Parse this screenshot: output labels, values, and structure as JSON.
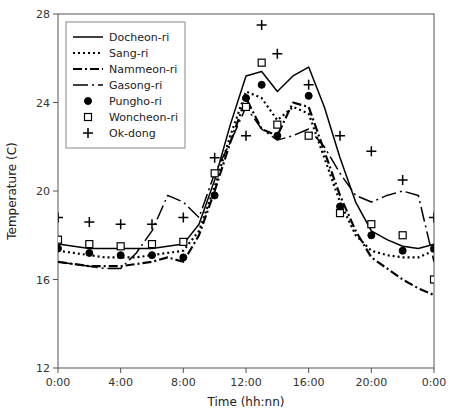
{
  "chart_data": {
    "type": "line",
    "xlabel": "Time (hh:nn)",
    "ylabel": "Temperature (C)",
    "xlim": [
      0,
      24
    ],
    "xticks": [
      {
        "value": 0,
        "label": "0:00"
      },
      {
        "value": 4,
        "label": "4:00"
      },
      {
        "value": 8,
        "label": "8:00"
      },
      {
        "value": 12,
        "label": "12:00"
      },
      {
        "value": 16,
        "label": "16:00"
      },
      {
        "value": 20,
        "label": "20:00"
      },
      {
        "value": 24,
        "label": "0:00"
      }
    ],
    "ylim": [
      12,
      28
    ],
    "yticks": [
      12,
      16,
      20,
      24,
      28
    ],
    "grid": false,
    "legend": "upper left",
    "series": [
      {
        "name": "Docheon-ri",
        "type": "line",
        "line_style": "solid",
        "color": "#000000",
        "x": [
          0,
          1,
          2,
          3,
          4,
          5,
          6,
          7,
          8,
          9,
          10,
          11,
          12,
          13,
          14,
          15,
          16,
          17,
          18,
          19,
          20,
          21,
          22,
          23,
          24
        ],
        "values": [
          17.6,
          17.5,
          17.4,
          17.4,
          17.4,
          17.4,
          17.4,
          17.5,
          17.6,
          18.5,
          20.5,
          23.0,
          25.2,
          25.4,
          24.5,
          25.2,
          25.6,
          23.8,
          21.5,
          19.5,
          18.2,
          17.8,
          17.5,
          17.4,
          17.6
        ]
      },
      {
        "name": "Sang-ri",
        "type": "line",
        "line_style": "dotted",
        "color": "#000000",
        "x": [
          0,
          1,
          2,
          3,
          4,
          5,
          6,
          7,
          8,
          9,
          10,
          11,
          12,
          13,
          14,
          15,
          16,
          17,
          18,
          19,
          20,
          21,
          22,
          23,
          24
        ],
        "values": [
          17.3,
          17.2,
          17.1,
          17.0,
          17.0,
          17.0,
          17.1,
          17.2,
          17.3,
          18.2,
          20.2,
          22.5,
          24.5,
          24.2,
          23.2,
          23.8,
          23.5,
          21.5,
          19.5,
          18.0,
          17.3,
          17.1,
          17.0,
          17.0,
          17.3
        ]
      },
      {
        "name": "Nammeon-ri",
        "type": "line",
        "line_style": "dashdot",
        "color": "#000000",
        "x": [
          0,
          1,
          2,
          3,
          4,
          5,
          6,
          7,
          8,
          9,
          10,
          11,
          12,
          13,
          14,
          15,
          16,
          17,
          18,
          19,
          20,
          21,
          22,
          23,
          24
        ],
        "values": [
          16.8,
          16.7,
          16.6,
          16.6,
          16.6,
          16.7,
          16.8,
          17.0,
          16.8,
          18.0,
          20.0,
          22.2,
          24.2,
          22.8,
          22.5,
          24.0,
          23.8,
          21.8,
          19.8,
          18.2,
          17.0,
          16.5,
          16.0,
          15.6,
          15.3
        ]
      },
      {
        "name": "Gasong-ri",
        "type": "line",
        "line_style": "longdashdot",
        "color": "#000000",
        "x": [
          0,
          1,
          2,
          3,
          4,
          5,
          6,
          7,
          8,
          9,
          10,
          11,
          12,
          13,
          14,
          15,
          16,
          17,
          18,
          19,
          20,
          21,
          22,
          23,
          24
        ],
        "values": [
          16.8,
          16.7,
          16.6,
          16.5,
          16.5,
          17.2,
          18.2,
          19.8,
          19.5,
          18.8,
          20.8,
          22.2,
          23.8,
          22.8,
          22.3,
          22.5,
          22.8,
          22.0,
          20.8,
          19.8,
          19.5,
          19.8,
          20.0,
          19.8,
          16.8
        ]
      },
      {
        "name": "Pungho-ri",
        "type": "scatter",
        "marker": "circle",
        "color": "#000000",
        "x": [
          0,
          2,
          4,
          6,
          8,
          10,
          12,
          13,
          14,
          16,
          18,
          20,
          22,
          24
        ],
        "values": [
          17.4,
          17.2,
          17.1,
          17.1,
          17.0,
          19.8,
          24.2,
          24.8,
          22.5,
          24.3,
          19.3,
          18.0,
          17.3,
          17.4
        ]
      },
      {
        "name": "Woncheon-ri",
        "type": "scatter",
        "marker": "square",
        "color": "#000000",
        "x": [
          0,
          2,
          4,
          6,
          8,
          10,
          12,
          13,
          14,
          16,
          18,
          20,
          22,
          24
        ],
        "values": [
          17.8,
          17.6,
          17.5,
          17.6,
          17.7,
          20.8,
          23.8,
          25.8,
          23.0,
          22.5,
          19.0,
          18.5,
          18.0,
          16.0
        ]
      },
      {
        "name": "Ok-dong",
        "type": "scatter",
        "marker": "plus",
        "color": "#000000",
        "x": [
          0,
          2,
          4,
          6,
          8,
          10,
          12,
          13,
          14,
          16,
          18,
          20,
          22,
          24
        ],
        "values": [
          18.8,
          18.6,
          18.5,
          18.5,
          18.8,
          21.5,
          22.5,
          27.5,
          26.2,
          24.8,
          22.5,
          21.8,
          20.5,
          18.8
        ]
      }
    ]
  }
}
